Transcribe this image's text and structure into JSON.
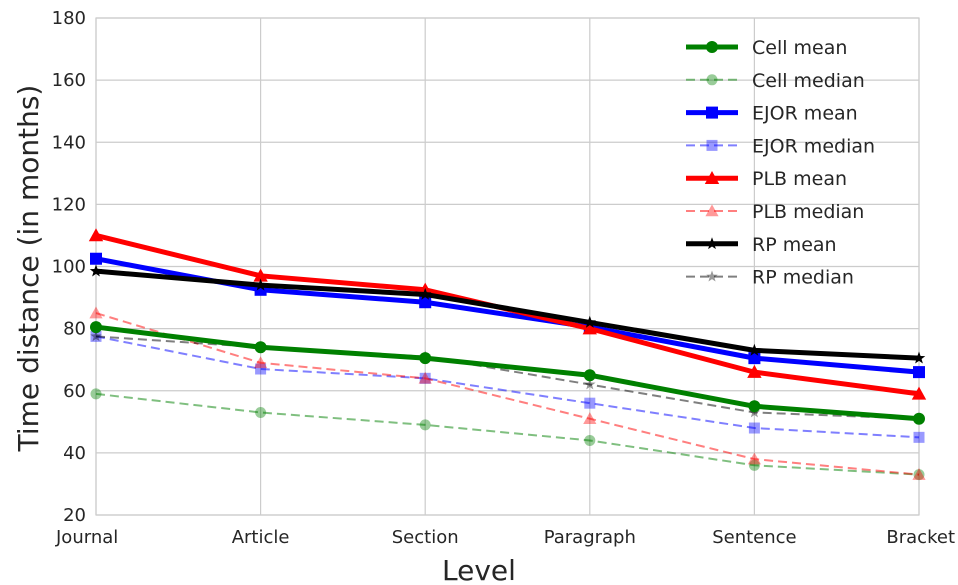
{
  "chart_data": {
    "type": "line",
    "xlabel": "Level",
    "ylabel": "Time distance (in months)",
    "categories": [
      "Journal",
      "Article",
      "Section",
      "Paragraph",
      "Sentence",
      "Bracket"
    ],
    "ylim": [
      20,
      180
    ],
    "yticks": [
      20,
      40,
      60,
      80,
      100,
      120,
      140,
      160,
      180
    ],
    "grid": true,
    "legend_position": "top-right",
    "series": [
      {
        "name": "Cell mean",
        "color": "#008000",
        "style": "solid",
        "marker": "circle",
        "values": [
          80.5,
          74,
          70.5,
          65,
          55,
          51
        ]
      },
      {
        "name": "Cell median",
        "color": "#008000",
        "style": "dashed",
        "marker": "circle",
        "values": [
          59,
          53,
          49,
          44,
          36,
          33
        ]
      },
      {
        "name": "EJOR mean",
        "color": "#0000ff",
        "style": "solid",
        "marker": "square",
        "values": [
          102.5,
          92.5,
          88.5,
          80.5,
          70.5,
          66
        ]
      },
      {
        "name": "EJOR median",
        "color": "#0000ff",
        "style": "dashed",
        "marker": "square",
        "values": [
          77.5,
          67,
          64,
          56,
          48,
          45
        ]
      },
      {
        "name": "PLB mean",
        "color": "#ff0000",
        "style": "solid",
        "marker": "triangle",
        "values": [
          110,
          97,
          92.5,
          80,
          66,
          59
        ]
      },
      {
        "name": "PLB median",
        "color": "#ff0000",
        "style": "dashed",
        "marker": "triangle",
        "values": [
          85,
          69,
          64,
          51,
          38,
          33
        ]
      },
      {
        "name": "RP mean",
        "color": "#000000",
        "style": "solid",
        "marker": "star",
        "values": [
          98.5,
          94,
          91,
          82,
          73,
          70.5
        ]
      },
      {
        "name": "RP median",
        "color": "#000000",
        "style": "dashed",
        "marker": "star",
        "values": [
          77.5,
          74,
          71,
          62,
          53,
          51
        ]
      }
    ]
  }
}
